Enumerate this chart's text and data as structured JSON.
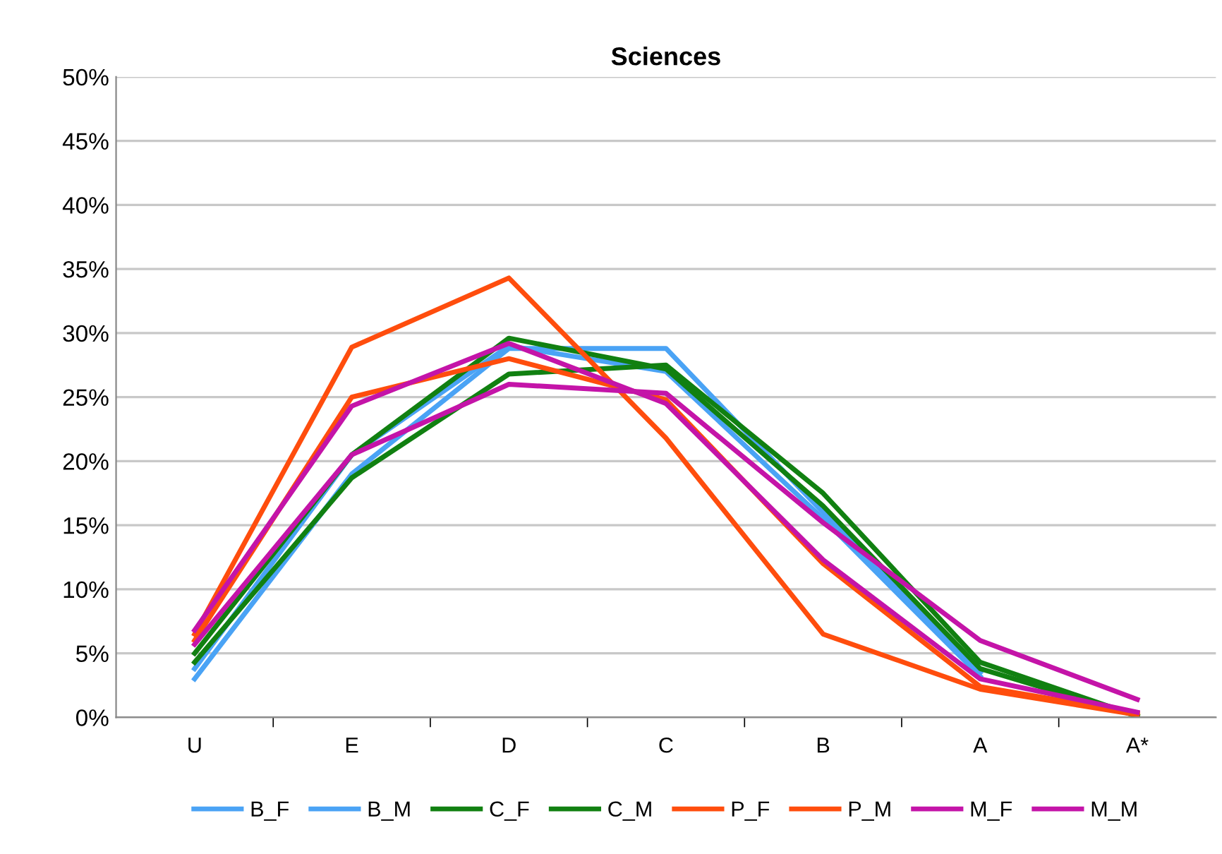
{
  "chart_data": {
    "type": "line",
    "title": "Sciences",
    "categories": [
      "U",
      "E",
      "D",
      "C",
      "B",
      "A",
      "A*"
    ],
    "series": [
      {
        "name": "B_F",
        "color": "#4aa3f5",
        "values": [
          3.0,
          19.0,
          28.8,
          28.8,
          16.0,
          3.5,
          null
        ]
      },
      {
        "name": "B_M",
        "color": "#4aa3f5",
        "values": [
          3.8,
          20.5,
          29.0,
          27.0,
          15.5,
          3.2,
          null
        ]
      },
      {
        "name": "C_F",
        "color": "#118011",
        "values": [
          4.3,
          18.7,
          26.8,
          27.5,
          17.5,
          4.3,
          0.1
        ]
      },
      {
        "name": "C_M",
        "color": "#118011",
        "values": [
          5.0,
          20.5,
          29.6,
          27.2,
          16.5,
          3.8,
          0.1
        ]
      },
      {
        "name": "P_F",
        "color": "#ff4d0d",
        "values": [
          6.5,
          28.9,
          34.3,
          21.8,
          6.5,
          2.2,
          0.2
        ]
      },
      {
        "name": "P_M",
        "color": "#ff4d0d",
        "values": [
          6.0,
          25.0,
          28.0,
          24.8,
          12.0,
          2.4,
          0.3
        ]
      },
      {
        "name": "M_F",
        "color": "#c414a8",
        "values": [
          6.8,
          24.3,
          29.2,
          24.5,
          12.3,
          3.0,
          0.4
        ]
      },
      {
        "name": "M_M",
        "color": "#c414a8",
        "values": [
          5.7,
          20.5,
          26.0,
          25.3,
          15.2,
          6.0,
          1.4
        ]
      }
    ],
    "ylim": [
      0,
      50
    ],
    "yticks": [
      {
        "value": 0,
        "label": "0%"
      },
      {
        "value": 5,
        "label": "5%"
      },
      {
        "value": 10,
        "label": "10%"
      },
      {
        "value": 15,
        "label": "15%"
      },
      {
        "value": 20,
        "label": "20%"
      },
      {
        "value": 25,
        "label": "25%"
      },
      {
        "value": 30,
        "label": "30%"
      },
      {
        "value": 35,
        "label": "35%"
      },
      {
        "value": 40,
        "label": "40%"
      },
      {
        "value": 45,
        "label": "45%"
      },
      {
        "value": 50,
        "label": "50%"
      }
    ],
    "grid": "y",
    "legend": "bottom",
    "marker": "none",
    "line_style": "solid"
  }
}
